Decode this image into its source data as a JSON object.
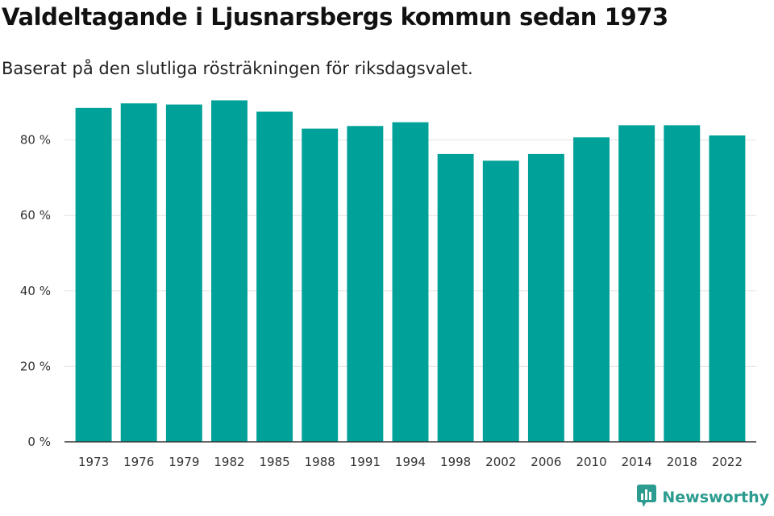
{
  "header": {
    "title": "Valdeltagande i Ljusnarsbergs kommun sedan 1973",
    "subtitle": "Baserat på den slutliga rösträkningen för riksdagsvalet."
  },
  "brand": {
    "label": "Newsworthy",
    "icon": "newsworthy-logo-icon",
    "color": "#2b9c8f"
  },
  "chart_data": {
    "type": "bar",
    "title": "Valdeltagande i Ljusnarsbergs kommun sedan 1973",
    "subtitle": "Baserat på den slutliga rösträkningen för riksdagsvalet.",
    "xlabel": "",
    "ylabel": "",
    "categories": [
      "1973",
      "1976",
      "1979",
      "1982",
      "1985",
      "1988",
      "1991",
      "1994",
      "1998",
      "2002",
      "2006",
      "2010",
      "2014",
      "2018",
      "2022"
    ],
    "values": [
      88.5,
      89.7,
      89.4,
      90.5,
      87.5,
      83.0,
      83.7,
      84.7,
      76.3,
      74.5,
      76.3,
      80.7,
      83.9,
      83.9,
      81.2
    ],
    "ylim": [
      0,
      100
    ],
    "yticks": [
      0,
      20,
      40,
      60,
      80
    ],
    "ytick_labels": [
      "0 %",
      "20 %",
      "40 %",
      "60 %",
      "80 %"
    ],
    "grid": true,
    "legend": "none",
    "bar_color": "#00a198"
  }
}
